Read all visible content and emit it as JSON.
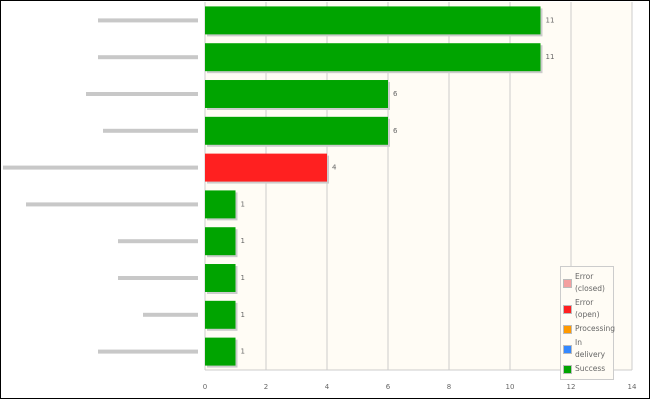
{
  "chart_data": {
    "type": "bar",
    "orientation": "horizontal",
    "categories": [
      null,
      null,
      null,
      null,
      null,
      null,
      null,
      null,
      null,
      null
    ],
    "series": [
      {
        "name": "Error (closed)",
        "color": "#f4a0a0",
        "values": [
          null,
          null,
          null,
          null,
          null,
          null,
          null,
          null,
          null,
          null
        ]
      },
      {
        "name": "Error (open)",
        "color": "#ff2020",
        "values": [
          null,
          null,
          null,
          null,
          4,
          null,
          null,
          null,
          null,
          null
        ]
      },
      {
        "name": "Processing",
        "color": "#ff9900",
        "values": [
          null,
          null,
          null,
          null,
          null,
          null,
          null,
          null,
          null,
          null
        ]
      },
      {
        "name": "In delivery",
        "color": "#3388ff",
        "values": [
          null,
          null,
          null,
          null,
          null,
          null,
          null,
          null,
          null,
          null
        ]
      },
      {
        "name": "Success",
        "color": "#00a400",
        "values": [
          11,
          11,
          6,
          6,
          null,
          1,
          1,
          1,
          1,
          1
        ]
      }
    ],
    "xlim": [
      0,
      14
    ],
    "xticks": [
      0,
      2,
      4,
      6,
      8,
      10,
      12,
      14
    ],
    "grid": true,
    "legend": "bottom-right"
  }
}
